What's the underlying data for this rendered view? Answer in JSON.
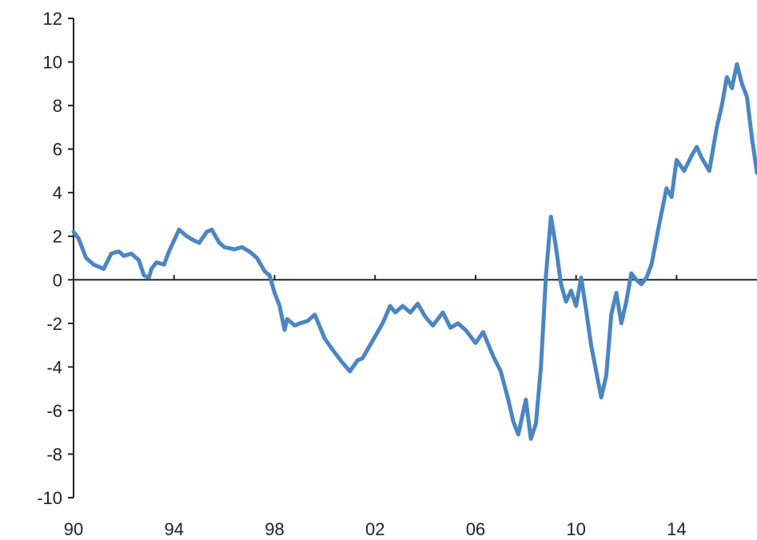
{
  "chart_data": {
    "type": "line",
    "title": "",
    "xlabel": "",
    "ylabel": "",
    "x_tick_labels": [
      "90",
      "94",
      "98",
      "02",
      "06",
      "10",
      "14"
    ],
    "x_tick_years": [
      1990,
      1994,
      1998,
      2002,
      2006,
      2010,
      2014
    ],
    "y_ticks": [
      -10,
      -8,
      -6,
      -4,
      -2,
      0,
      2,
      4,
      6,
      8,
      10,
      12
    ],
    "xlim": [
      1990,
      2017.2
    ],
    "ylim": [
      -10,
      12
    ],
    "grid": false,
    "colors": {
      "series": "#4a86c2",
      "axis": "#222222"
    },
    "series": [
      {
        "name": "",
        "x": [
          1990.0,
          1990.2,
          1990.5,
          1990.8,
          1991.0,
          1991.2,
          1991.5,
          1991.8,
          1992.0,
          1992.3,
          1992.6,
          1992.8,
          1993.0,
          1993.1,
          1993.3,
          1993.6,
          1993.8,
          1994.0,
          1994.2,
          1994.5,
          1994.8,
          1995.0,
          1995.3,
          1995.5,
          1995.8,
          1996.0,
          1996.4,
          1996.7,
          1997.0,
          1997.3,
          1997.6,
          1997.8,
          1998.0,
          1998.2,
          1998.4,
          1998.5,
          1998.8,
          1999.0,
          1999.3,
          1999.6,
          2000.0,
          2000.3,
          2000.7,
          2001.0,
          2001.3,
          2001.5,
          2001.8,
          2002.0,
          2002.3,
          2002.6,
          2002.8,
          2003.1,
          2003.4,
          2003.7,
          2004.0,
          2004.3,
          2004.7,
          2005.0,
          2005.3,
          2005.6,
          2006.0,
          2006.3,
          2006.7,
          2007.0,
          2007.3,
          2007.5,
          2007.7,
          2008.0,
          2008.2,
          2008.4,
          2008.6,
          2008.8,
          2009.0,
          2009.2,
          2009.4,
          2009.6,
          2009.8,
          2010.0,
          2010.2,
          2010.4,
          2010.6,
          2010.8,
          2011.0,
          2011.2,
          2011.4,
          2011.6,
          2011.8,
          2012.0,
          2012.2,
          2012.4,
          2012.6,
          2012.8,
          2013.0,
          2013.3,
          2013.6,
          2013.8,
          2014.0,
          2014.3,
          2014.6,
          2014.8,
          2015.0,
          2015.3,
          2015.6,
          2015.8,
          2016.0,
          2016.2,
          2016.4,
          2016.6,
          2016.8,
          2017.0,
          2017.2
        ],
        "y": [
          2.2,
          1.9,
          1.0,
          0.7,
          0.6,
          0.5,
          1.2,
          1.3,
          1.1,
          1.2,
          0.9,
          0.2,
          0.1,
          0.5,
          0.8,
          0.7,
          1.3,
          1.8,
          2.3,
          2.0,
          1.8,
          1.7,
          2.2,
          2.3,
          1.7,
          1.5,
          1.4,
          1.5,
          1.3,
          1.0,
          0.4,
          0.2,
          -0.6,
          -1.2,
          -2.3,
          -1.8,
          -2.1,
          -2.0,
          -1.9,
          -1.6,
          -2.7,
          -3.2,
          -3.8,
          -4.2,
          -3.7,
          -3.6,
          -3.0,
          -2.6,
          -2.0,
          -1.2,
          -1.5,
          -1.2,
          -1.5,
          -1.1,
          -1.7,
          -2.1,
          -1.5,
          -2.2,
          -2.0,
          -2.3,
          -2.9,
          -2.4,
          -3.5,
          -4.2,
          -5.5,
          -6.5,
          -7.1,
          -5.5,
          -7.3,
          -6.6,
          -4.0,
          0.2,
          2.9,
          1.5,
          -0.2,
          -1.0,
          -0.5,
          -1.2,
          0.1,
          -1.4,
          -3.0,
          -4.2,
          -5.4,
          -4.4,
          -1.6,
          -0.6,
          -2.0,
          -1.0,
          0.3,
          0.0,
          -0.2,
          0.1,
          0.7,
          2.5,
          4.2,
          3.8,
          5.5,
          5.0,
          5.7,
          6.1,
          5.6,
          5.0,
          7.0,
          8.0,
          9.3,
          8.8,
          9.9,
          9.0,
          8.4,
          6.5,
          4.9
        ]
      }
    ]
  }
}
